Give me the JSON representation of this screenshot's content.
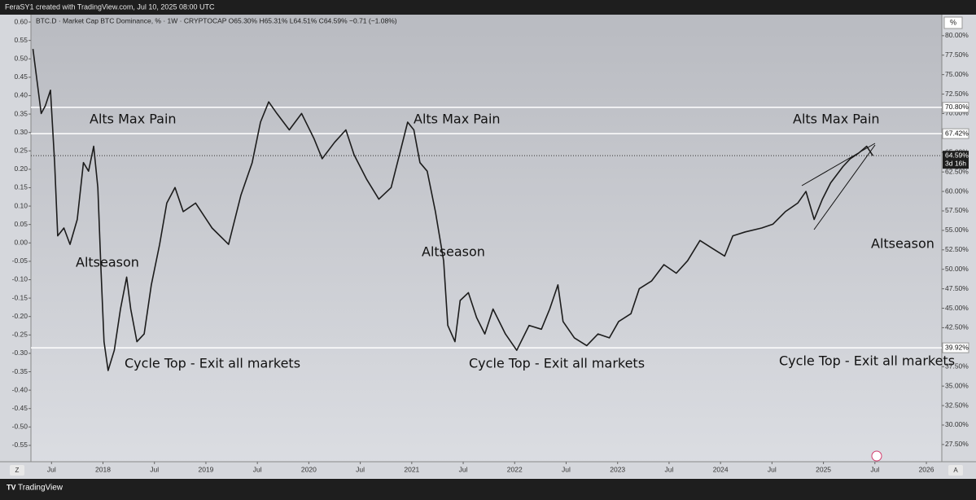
{
  "header": "FeraSY1 created with TradingView.com, Jul 10, 2025 08:00 UTC",
  "footer": "TradingView",
  "chart_data": {
    "type": "line",
    "subtitle": "BTC.D · Market Cap BTC Dominance, % · 1W · CRYPTOCAP  O65.30% H65.31% L64.51% C64.59% −0.71 (−1.08%)",
    "y_unit": "%",
    "left_button": "Z",
    "right_button": "A",
    "x": [
      2017.32,
      2017.36,
      2017.4,
      2017.44,
      2017.49,
      2017.53,
      2017.56,
      2017.62,
      2017.68,
      2017.75,
      2017.81,
      2017.86,
      2017.91,
      2017.95,
      2017.98,
      2018.01,
      2018.05,
      2018.11,
      2018.17,
      2018.23,
      2018.27,
      2018.33,
      2018.4,
      2018.47,
      2018.55,
      2018.62,
      2018.7,
      2018.78,
      2018.9,
      2019.06,
      2019.22,
      2019.34,
      2019.45,
      2019.53,
      2019.61,
      2019.69,
      2019.81,
      2019.93,
      2020.05,
      2020.13,
      2020.25,
      2020.36,
      2020.44,
      2020.56,
      2020.68,
      2020.8,
      2020.88,
      2020.96,
      2021.02,
      2021.08,
      2021.15,
      2021.23,
      2021.31,
      2021.35,
      2021.42,
      2021.47,
      2021.55,
      2021.63,
      2021.71,
      2021.79,
      2021.91,
      2022.02,
      2022.14,
      2022.26,
      2022.34,
      2022.42,
      2022.47,
      2022.58,
      2022.7,
      2022.81,
      2022.92,
      2023.01,
      2023.13,
      2023.21,
      2023.33,
      2023.45,
      2023.57,
      2023.68,
      2023.8,
      2023.92,
      2024.04,
      2024.12,
      2024.24,
      2024.4,
      2024.51,
      2024.63,
      2024.75,
      2024.83,
      2024.91,
      2024.99,
      2025.07,
      2025.19,
      2025.26,
      2025.34,
      2025.42,
      2025.48
    ],
    "series": [
      {
        "name": "BTC.D",
        "color": "#1c1c1c",
        "values": [
          78.3,
          74.1,
          70,
          71,
          73,
          63.7,
          54.3,
          55.3,
          53.2,
          56.4,
          63.7,
          62.6,
          65.8,
          60.5,
          50.1,
          40.7,
          37,
          39.6,
          44.9,
          49,
          44.9,
          40.7,
          41.7,
          48,
          53.2,
          58.5,
          60.5,
          57.4,
          58.5,
          55.3,
          53.2,
          59.5,
          63.7,
          68.9,
          71.5,
          70,
          67.9,
          70,
          66.8,
          64.2,
          66.3,
          67.9,
          64.7,
          61.6,
          59,
          60.5,
          64.7,
          68.9,
          67.9,
          63.7,
          62.6,
          57.4,
          51.1,
          42.8,
          40.7,
          46,
          47,
          43.8,
          41.7,
          44.9,
          41.7,
          39.6,
          42.8,
          42.3,
          44.9,
          48,
          43.3,
          41.2,
          40.2,
          41.7,
          41.2,
          43.3,
          44.3,
          47.5,
          48.5,
          50.6,
          49.5,
          51.1,
          53.7,
          52.7,
          51.7,
          54.3,
          54.8,
          55.3,
          55.8,
          57.4,
          58.5,
          60,
          56.4,
          59,
          61.1,
          63.2,
          64.2,
          64.9,
          65.8,
          64.59
        ]
      }
    ],
    "xlim": [
      2017.3,
      2026.15
    ],
    "xticks": [
      {
        "value": 2017.5,
        "label": "Jul"
      },
      2018,
      {
        "value": 2018.5,
        "label": "Jul"
      },
      2019,
      {
        "value": 2019.5,
        "label": "Jul"
      },
      2020,
      {
        "value": 2020.5,
        "label": "Jul"
      },
      2021,
      {
        "value": 2021.5,
        "label": "Jul"
      },
      2022,
      {
        "value": 2022.5,
        "label": "Jul"
      },
      2023,
      {
        "value": 2023.5,
        "label": "Jul"
      },
      2024,
      {
        "value": 2024.5,
        "label": "Jul"
      },
      2025,
      {
        "value": 2025.5,
        "label": "Jul"
      },
      2026
    ],
    "ylim": [
      25.5,
      82.7
    ],
    "yticks": [
      {
        "value": 27.5,
        "label": "27.50%"
      },
      {
        "value": 30,
        "label": "30.00%"
      },
      {
        "value": 32.5,
        "label": "32.50%"
      },
      {
        "value": 35,
        "label": "35.00%"
      },
      {
        "value": 37.5,
        "label": "37.50%"
      },
      {
        "value": 40,
        "label": "40.00%"
      },
      {
        "value": 42.5,
        "label": "42.50%"
      },
      {
        "value": 45,
        "label": "45.00%"
      },
      {
        "value": 47.5,
        "label": "47.50%"
      },
      {
        "value": 50,
        "label": "50.00%"
      },
      {
        "value": 52.5,
        "label": "52.50%"
      },
      {
        "value": 55,
        "label": "55.00%"
      },
      {
        "value": 57.5,
        "label": "57.50%"
      },
      {
        "value": 60,
        "label": "60.00%"
      },
      {
        "value": 62.5,
        "label": "62.50%"
      },
      {
        "value": 65,
        "label": "65.00%"
      },
      {
        "value": 67.5,
        "label": "67.50%"
      },
      {
        "value": 70,
        "label": "70.00%"
      },
      {
        "value": 72.5,
        "label": "72.50%"
      },
      {
        "value": 75,
        "label": "75.00%"
      },
      {
        "value": 77.5,
        "label": "77.50%"
      },
      {
        "value": 80,
        "label": "80.00%"
      }
    ],
    "y2lim": [
      -0.59,
      0.62
    ],
    "y2ticks": [
      {
        "value": 0.6,
        "label": "0.60"
      },
      {
        "value": 0.55,
        "label": "0.55"
      },
      {
        "value": 0.5,
        "label": "0.50"
      },
      {
        "value": 0.45,
        "label": "0.45"
      },
      {
        "value": 0.4,
        "label": "0.40"
      },
      {
        "value": 0.35,
        "label": "0.35"
      },
      {
        "value": 0.3,
        "label": "0.30"
      },
      {
        "value": 0.25,
        "label": "0.25"
      },
      {
        "value": 0.2,
        "label": "0.20"
      },
      {
        "value": 0.15,
        "label": "0.15"
      },
      {
        "value": 0.1,
        "label": "0.10"
      },
      {
        "value": 0.05,
        "label": "0.05"
      },
      {
        "value": 0,
        "label": "0.00"
      },
      {
        "value": -0.05,
        "label": "-0.05"
      },
      {
        "value": -0.1,
        "label": "-0.10"
      },
      {
        "value": -0.15,
        "label": "-0.15"
      },
      {
        "value": -0.2,
        "label": "-0.20"
      },
      {
        "value": -0.25,
        "label": "-0.25"
      },
      {
        "value": -0.3,
        "label": "-0.30"
      },
      {
        "value": -0.35,
        "label": "-0.35"
      },
      {
        "value": -0.4,
        "label": "-0.40"
      },
      {
        "value": -0.45,
        "label": "-0.45"
      },
      {
        "value": -0.5,
        "label": "-0.50"
      },
      {
        "value": -0.55,
        "label": "-0.55"
      }
    ],
    "levels": [
      {
        "value": 70.8,
        "label": "70.80%"
      },
      {
        "value": 67.42,
        "label": "67.42%"
      },
      {
        "value": 39.92,
        "label": "39.92%"
      }
    ],
    "last": {
      "value": 64.59,
      "label": "64.59%",
      "countdown": "3d 16h"
    },
    "annotations": [
      "Alts Max Pain",
      "Alts Max Pain",
      "Alts Max Pain",
      "Altseason",
      "Altseason",
      "Altseason",
      "Cycle Top - Exit all markets",
      "Cycle Top - Exit all markets",
      "Cycle Top - Exit all markets"
    ]
  }
}
